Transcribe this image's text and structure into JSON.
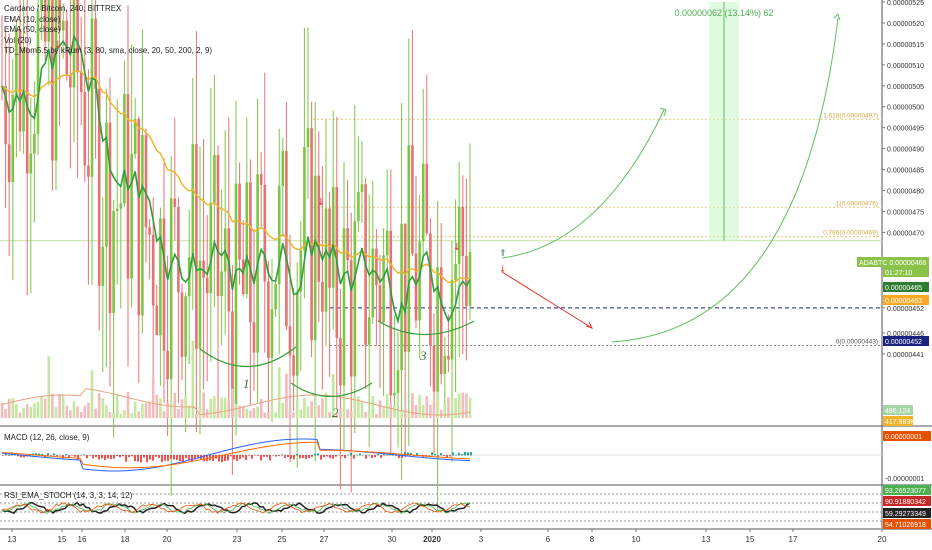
{
  "chart_data": {
    "type": "candlestick",
    "symbol_title": "Cardano / Bitcoin, 240, BITTREX",
    "indicators": [
      "EMA (10, close)",
      "EMA (50, close)",
      "Vol (20)",
      "TD_Mom5.5 by kRum (3, 80, sma, close, 20, 50, 200, 2, 9)"
    ],
    "ylim": [
      4.3e-06,
      5.25e-06
    ],
    "y_ticks": [
      "0.00000525",
      "0.00000520",
      "0.00000515",
      "0.00000510",
      "0.00000505",
      "0.00000500",
      "0.00000495",
      "0.00000490",
      "0.00000485",
      "0.00000480",
      "0.00000475",
      "0.00000470",
      "0.00000463",
      "0.00000457",
      "0.00000452",
      "0.00000446",
      "0.00000441"
    ],
    "x_ticks": [
      "13",
      "15",
      "16",
      "18",
      "20",
      "23",
      "25",
      "27",
      "30",
      "2020",
      "3",
      "6",
      "8",
      "10",
      "13",
      "15",
      "17",
      "20"
    ],
    "price_badges": [
      {
        "label": "ADABTC",
        "value": "0.00000468",
        "y": 4.68e-06,
        "color": "#8bc34a"
      },
      {
        "label": "",
        "value": "01:27:10",
        "y": 4.665e-06,
        "color": "#8bc34a"
      },
      {
        "label": "",
        "value": "0.00000465",
        "y": 4.65e-06,
        "color": "#2e7d32"
      },
      {
        "label": "",
        "value": "0.00000463",
        "y": 4.63e-06,
        "color": "#f9a825"
      },
      {
        "label": "",
        "value": "0.00000452",
        "y": 4.52e-06,
        "color": "#1a237e"
      }
    ],
    "fib_levels": [
      {
        "label": "1.618(0.00000497)",
        "y": 4.97e-06
      },
      {
        "label": "1(0.00000476)",
        "y": 4.76e-06
      },
      {
        "label": "0.786(0.00000469)",
        "y": 4.69e-06
      },
      {
        "label": "0(0.00000443)",
        "y": 4.43e-06
      }
    ],
    "annotations": {
      "measure": "0.00000062 (13.14%) 62",
      "pattern_labels": [
        "1",
        "2",
        "3"
      ]
    },
    "volume_badges": [
      "486.124",
      "417.983K"
    ],
    "macd": {
      "label": "MACD (12, 26, close, 9)",
      "badges": [
        "0.00000001",
        "-0.00000001"
      ]
    },
    "rsi": {
      "label": "RSI_EMA_STOCH (14, 3, 3, 14, 12)",
      "badges": [
        {
          "value": "93.26923077",
          "color": "#4caf50"
        },
        {
          "value": "90.91880342",
          "color": "#c62828"
        },
        {
          "value": "59.29273349",
          "color": "#222222"
        },
        {
          "value": "54.71026918",
          "color": "#e65100"
        }
      ]
    },
    "colors": {
      "up": "#7cc644",
      "down": "#e57373",
      "ema10": "#2e9e3e",
      "ema50": "#f0b429",
      "fib": "#e6c77a"
    }
  }
}
